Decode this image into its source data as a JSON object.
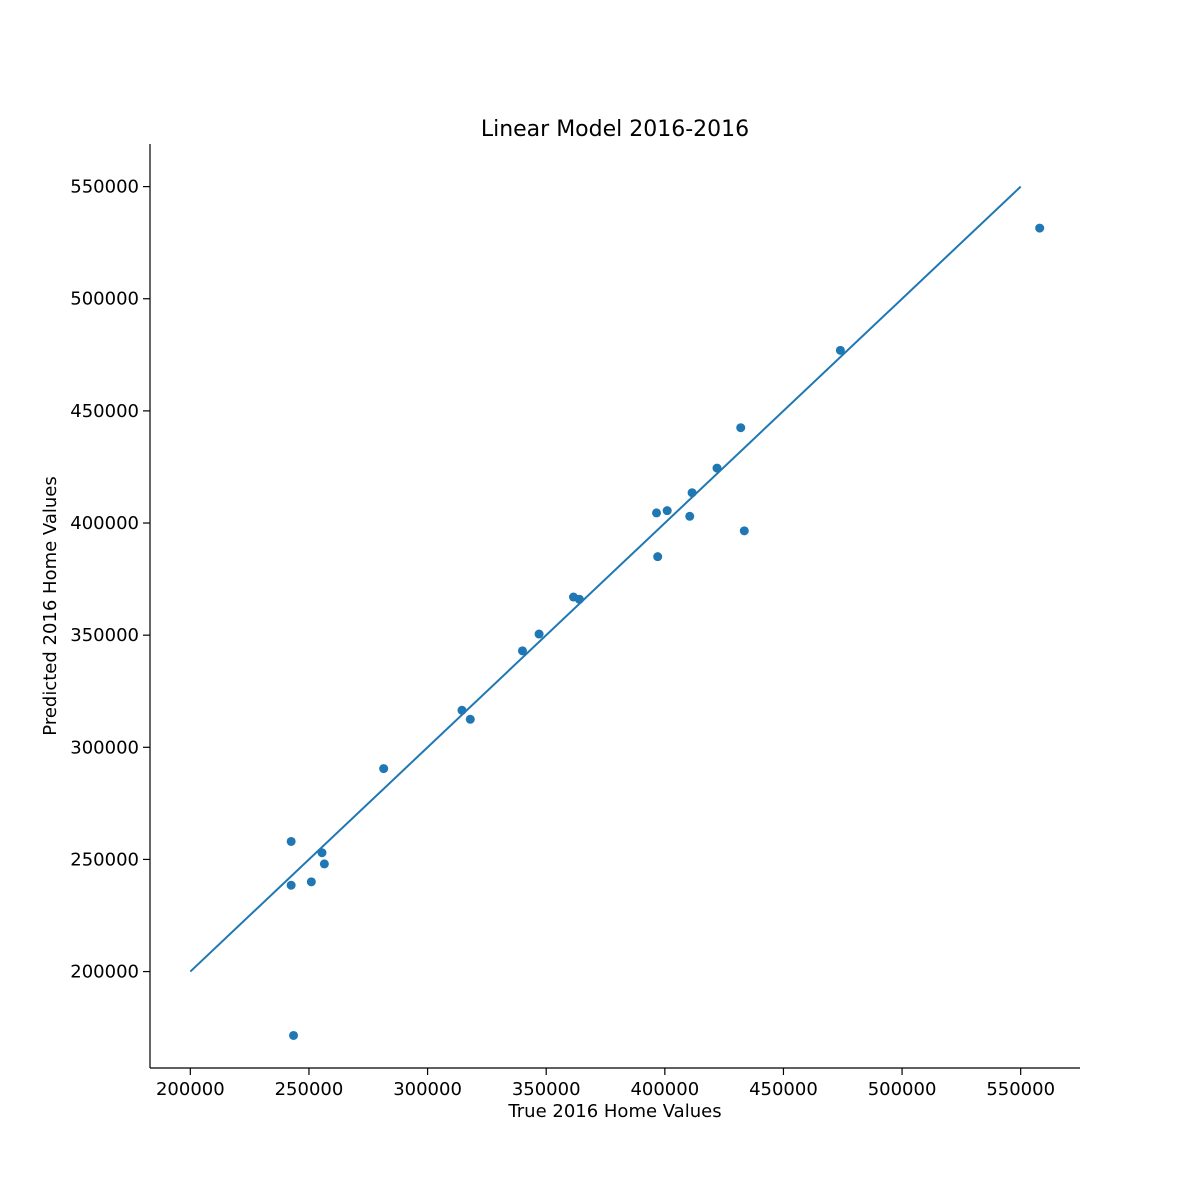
{
  "chart_data": {
    "type": "scatter",
    "title": "Linear Model 2016-2016",
    "xlabel": "True 2016 Home Values",
    "ylabel": "Predicted 2016 Home Values",
    "xlim": [
      183000,
      575000
    ],
    "ylim": [
      157000,
      569000
    ],
    "xticks": [
      200000,
      250000,
      300000,
      350000,
      400000,
      450000,
      500000,
      550000
    ],
    "yticks": [
      200000,
      250000,
      300000,
      350000,
      400000,
      450000,
      500000,
      550000
    ],
    "xtick_labels": [
      "200000",
      "250000",
      "300000",
      "350000",
      "400000",
      "450000",
      "500000",
      "550000"
    ],
    "ytick_labels": [
      "200000",
      "250000",
      "300000",
      "350000",
      "400000",
      "450000",
      "500000",
      "550000"
    ],
    "grid": false,
    "color": "#1f77b4",
    "reference_line": {
      "x": [
        200000,
        550000
      ],
      "y": [
        200000,
        550000
      ]
    },
    "points": [
      {
        "x": 242500,
        "y": 258000
      },
      {
        "x": 242500,
        "y": 238500
      },
      {
        "x": 243500,
        "y": 171500
      },
      {
        "x": 251000,
        "y": 240000
      },
      {
        "x": 255500,
        "y": 253000
      },
      {
        "x": 256500,
        "y": 248000
      },
      {
        "x": 281500,
        "y": 290500
      },
      {
        "x": 314500,
        "y": 316500
      },
      {
        "x": 318000,
        "y": 312500
      },
      {
        "x": 340000,
        "y": 343000
      },
      {
        "x": 347000,
        "y": 350500
      },
      {
        "x": 361500,
        "y": 367000
      },
      {
        "x": 364000,
        "y": 366000
      },
      {
        "x": 396500,
        "y": 404500
      },
      {
        "x": 397000,
        "y": 385000
      },
      {
        "x": 401000,
        "y": 405500
      },
      {
        "x": 410500,
        "y": 403000
      },
      {
        "x": 411500,
        "y": 413500
      },
      {
        "x": 422000,
        "y": 424500
      },
      {
        "x": 432000,
        "y": 442500
      },
      {
        "x": 433500,
        "y": 396500
      },
      {
        "x": 474000,
        "y": 477000
      },
      {
        "x": 558000,
        "y": 531500
      }
    ]
  }
}
